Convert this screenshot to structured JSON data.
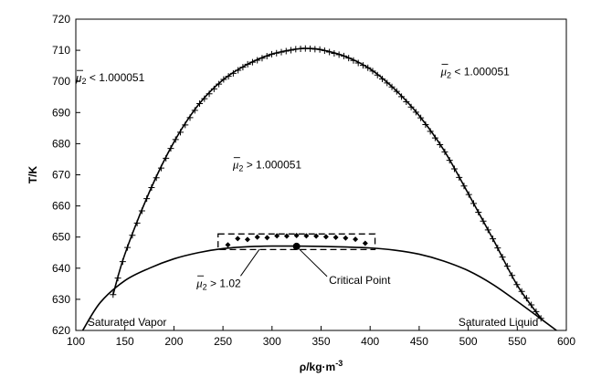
{
  "chart_data": {
    "type": "line",
    "xlabel": "ρ/kg·m",
    "xlabel_sup": "-3",
    "ylabel": "T/K",
    "xlim": [
      100,
      600
    ],
    "ylim": [
      620,
      720
    ],
    "x_ticks": [
      100,
      150,
      200,
      250,
      300,
      350,
      400,
      450,
      500,
      550,
      600
    ],
    "y_ticks": [
      620,
      630,
      640,
      650,
      660,
      670,
      680,
      690,
      700,
      710,
      720
    ],
    "grid": false,
    "legend": "none",
    "series": [
      {
        "name": "",
        "style": "line-with-plus-markers",
        "x": [
          138,
          150,
          175,
          200,
          225,
          250,
          275,
          300,
          325,
          335,
          350,
          375,
          400,
          425,
          450,
          475,
          500,
          525,
          550,
          575
        ],
        "y": [
          631.5,
          644.5,
          664.5,
          680.5,
          692.5,
          700.5,
          705.5,
          708.8,
          710.4,
          710.6,
          710.2,
          708.0,
          704.0,
          697.5,
          689.0,
          678.0,
          664.0,
          649.5,
          634.5,
          623.5
        ]
      },
      {
        "name": "",
        "style": "solid-line",
        "x": [
          107,
          125,
          150,
          175,
          200,
          225,
          250,
          275,
          300,
          325,
          350,
          375,
          400,
          425,
          450,
          475,
          500,
          525,
          550,
          575,
          590
        ],
        "y": [
          620,
          629.0,
          636.0,
          640.0,
          643.0,
          645.0,
          646.3,
          646.9,
          647.1,
          647.1,
          647.0,
          646.8,
          646.5,
          645.8,
          644.5,
          642.3,
          639.2,
          634.8,
          629.3,
          623.5,
          620
        ]
      },
      {
        "name": "",
        "style": "diamond-markers",
        "x": [
          255,
          265,
          275,
          285,
          295,
          305,
          315,
          325,
          335,
          345,
          355,
          365,
          375,
          385,
          395
        ],
        "y": [
          647.5,
          649.5,
          649.2,
          650.0,
          649.8,
          650.4,
          650.3,
          650.5,
          650.4,
          650.3,
          650.1,
          649.9,
          649.7,
          649.3,
          648.0
        ]
      }
    ],
    "critical_point": {
      "label": "Critical Point",
      "x": 325,
      "y": 647
    },
    "dashed_box": {
      "x": [
        245,
        405
      ],
      "y": [
        646,
        651
      ]
    },
    "annotations": [
      {
        "id": "mu-lt-left",
        "prefix": "μ",
        "sub": "2",
        "suffix": " < 1.000051",
        "x": 100,
        "y": 700
      },
      {
        "id": "mu-lt-right",
        "prefix": "μ",
        "sub": "2",
        "suffix": " < 1.000051",
        "x": 472,
        "y": 702
      },
      {
        "id": "mu-gt-center",
        "prefix": "μ",
        "sub": "2",
        "suffix": " > 1.000051",
        "x": 260,
        "y": 672
      },
      {
        "id": "mu-gt-lower",
        "prefix": "μ",
        "sub": "2",
        "suffix": " > 1.02",
        "x": 223,
        "y": 634
      }
    ],
    "region_labels": [
      {
        "id": "saturated-vapor",
        "text": "Saturated Vapor",
        "x": 112,
        "y": 621.5
      },
      {
        "id": "saturated-liquid",
        "text": "Saturated Liquid",
        "x": 490,
        "y": 621.5
      }
    ],
    "critical_point_label_pos": {
      "x": 358,
      "y": 635
    }
  }
}
